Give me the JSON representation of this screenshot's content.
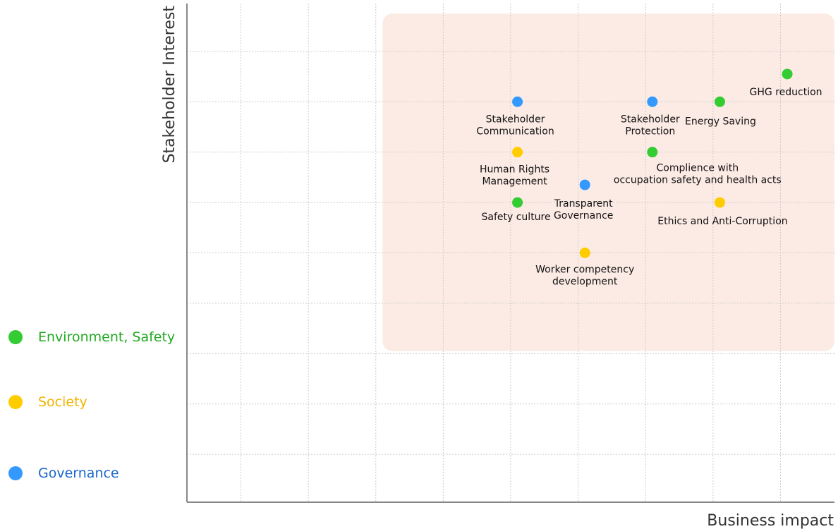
{
  "chart_data": {
    "type": "scatter",
    "title": "",
    "xlabel": "Business impact",
    "ylabel": "Stakeholder Interest",
    "xlim": [
      0,
      9.6
    ],
    "ylim": [
      0,
      9.9
    ],
    "grid": true,
    "highlight_region": {
      "x": [
        2.9,
        9.6
      ],
      "y": [
        3.0,
        9.7
      ]
    },
    "legend_position": "left",
    "series": [
      {
        "name": "Environment, Safety",
        "color": "#33cc33",
        "text_color": "#22aa22",
        "points": [
          {
            "x": 8.9,
            "y": 8.5,
            "label": [
              "GHG reduction"
            ]
          },
          {
            "x": 7.9,
            "y": 7.95,
            "label": [
              "Energy Saving"
            ]
          },
          {
            "x": 6.9,
            "y": 6.95,
            "label": [
              "Complience with",
              "occupation safety and health acts"
            ]
          },
          {
            "x": 4.9,
            "y": 5.95,
            "label": [
              "Safety culture"
            ]
          }
        ]
      },
      {
        "name": "Society",
        "color": "#ffcc00",
        "text_color": "#f0b400",
        "points": [
          {
            "x": 4.9,
            "y": 6.95,
            "label": [
              "Human Rights",
              "Management"
            ]
          },
          {
            "x": 7.9,
            "y": 5.95,
            "label": [
              "Ethics and Anti-Corruption"
            ]
          },
          {
            "x": 5.9,
            "y": 4.95,
            "label": [
              "Worker competency",
              "development"
            ]
          }
        ]
      },
      {
        "name": "Governance",
        "color": "#3399ff",
        "text_color": "#1a66cc",
        "points": [
          {
            "x": 4.9,
            "y": 7.95,
            "label": [
              "Stakeholder",
              "Communication"
            ]
          },
          {
            "x": 6.9,
            "y": 7.95,
            "label": [
              "Stakeholder",
              "Protection"
            ]
          },
          {
            "x": 5.9,
            "y": 6.3,
            "label": [
              "Transparent",
              "Governance"
            ]
          }
        ]
      }
    ]
  }
}
